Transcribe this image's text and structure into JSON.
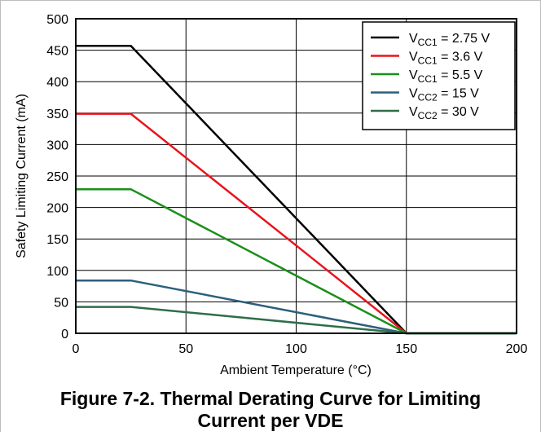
{
  "chart_data": {
    "type": "line",
    "title": "",
    "xlabel": "Ambient Temperature (°C)",
    "ylabel": "Safety Limiting Current (mA)",
    "xlim": [
      0,
      200
    ],
    "ylim": [
      0,
      500
    ],
    "xticks": [
      "0",
      "50",
      "100",
      "150",
      "200"
    ],
    "yticks": [
      "0",
      "50",
      "100",
      "150",
      "200",
      "250",
      "300",
      "350",
      "400",
      "450",
      "500"
    ],
    "grid": true,
    "legend_position": "top-right",
    "series": [
      {
        "name": "V",
        "sub": "CC1",
        "suffix": " = 2.75 V",
        "color": "#000000",
        "x": [
          0,
          25,
          150,
          200
        ],
        "y": [
          457,
          457,
          0,
          0
        ]
      },
      {
        "name": "V",
        "sub": "CC1",
        "suffix": " = 3.6 V",
        "color": "#e8141c",
        "x": [
          0,
          25,
          150,
          200
        ],
        "y": [
          349,
          349,
          0,
          0
        ]
      },
      {
        "name": "V",
        "sub": "CC1",
        "suffix": " = 5.5 V",
        "color": "#1a8f1a",
        "x": [
          0,
          25,
          150,
          200
        ],
        "y": [
          229,
          229,
          0,
          0
        ]
      },
      {
        "name": "V",
        "sub": "CC2",
        "suffix": " = 15 V",
        "color": "#2d5f7c",
        "x": [
          0,
          25,
          150,
          200
        ],
        "y": [
          84,
          84,
          0,
          0
        ]
      },
      {
        "name": "V",
        "sub": "CC2",
        "suffix": " = 30 V",
        "color": "#2f6e49",
        "x": [
          0,
          25,
          150,
          200
        ],
        "y": [
          42,
          42,
          0,
          0
        ]
      }
    ]
  },
  "caption": {
    "line1": "Figure 7-2. Thermal Derating Curve for Limiting",
    "line2": "Current per VDE"
  }
}
